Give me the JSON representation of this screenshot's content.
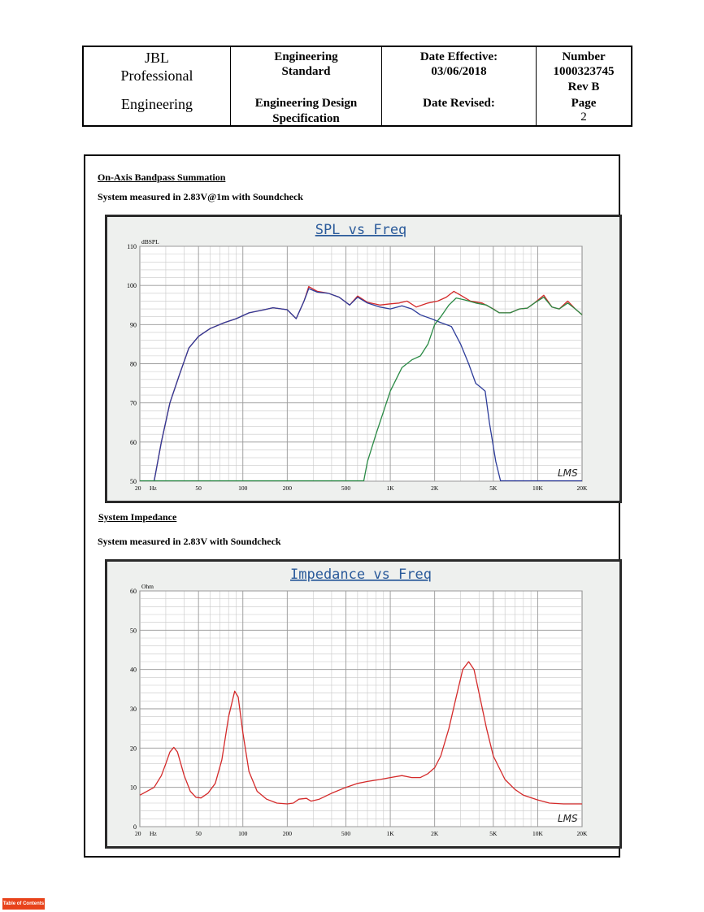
{
  "header": {
    "company_line1": "JBL",
    "company_line2": "Professional",
    "company_line3": "Engineering",
    "std_line1": "Engineering",
    "std_line2": "Standard",
    "spec_line1": "Engineering Design",
    "spec_line2": "Specification",
    "date_eff_label": "Date Effective:",
    "date_eff_value": "03/06/2018",
    "date_rev_label": "Date Revised:",
    "number_label": "Number",
    "number_value": "1000323745",
    "rev": "Rev B",
    "page_label": "Page",
    "page_value": "2"
  },
  "section1": {
    "heading": "On-Axis Bandpass Summation",
    "subheading": "System measured in 2.83V@1m with Soundcheck"
  },
  "section2": {
    "heading": "System Impedance",
    "subheading": "System measured in 2.83V with Soundcheck"
  },
  "footer": {
    "toc_label": "Table of Contents"
  },
  "chart_data": [
    {
      "type": "line",
      "title": "SPL vs Freq",
      "ylabel": "dBSPL",
      "xlabel": "Hz",
      "x_scale": "log",
      "xlim": [
        20,
        20000
      ],
      "ylim": [
        50,
        110
      ],
      "x_ticks": [
        20,
        50,
        100,
        200,
        500,
        1000,
        2000,
        5000,
        10000,
        20000
      ],
      "x_tick_labels": [
        "20",
        "50",
        "100",
        "200",
        "500",
        "1K",
        "2K",
        "5K",
        "10K",
        "20K"
      ],
      "y_ticks": [
        50,
        60,
        70,
        80,
        90,
        100,
        110
      ],
      "watermark": "LMS",
      "series": [
        {
          "color": "#d42a2a",
          "points": [
            [
              25,
              50
            ],
            [
              28,
              60
            ],
            [
              32,
              70
            ],
            [
              37,
              77
            ],
            [
              43,
              84
            ],
            [
              50,
              87
            ],
            [
              60,
              89
            ],
            [
              75,
              90.5
            ],
            [
              90,
              91.5
            ],
            [
              110,
              93
            ],
            [
              140,
              93.8
            ],
            [
              160,
              94.3
            ],
            [
              200,
              93.8
            ],
            [
              230,
              91.5
            ],
            [
              260,
              96
            ],
            [
              280,
              99.7
            ],
            [
              320,
              98.5
            ],
            [
              380,
              98
            ],
            [
              450,
              97
            ],
            [
              530,
              95
            ],
            [
              600,
              97.3
            ],
            [
              700,
              95.7
            ],
            [
              850,
              95
            ],
            [
              1000,
              95.3
            ],
            [
              1150,
              95.5
            ],
            [
              1300,
              96
            ],
            [
              1500,
              94.5
            ],
            [
              1800,
              95.5
            ],
            [
              2100,
              96
            ],
            [
              2400,
              97
            ],
            [
              2700,
              98.5
            ],
            [
              3000,
              97.5
            ],
            [
              3500,
              96
            ],
            [
              4200,
              95.5
            ],
            [
              5000,
              94
            ],
            [
              5500,
              93
            ],
            [
              6500,
              93
            ],
            [
              7500,
              94
            ],
            [
              8500,
              94.2
            ],
            [
              9500,
              95.5
            ],
            [
              11000,
              97.5
            ],
            [
              12500,
              94.5
            ],
            [
              14000,
              94
            ],
            [
              16000,
              96
            ],
            [
              18000,
              94
            ],
            [
              20000,
              92.5
            ]
          ]
        },
        {
          "color": "#2d3c9a",
          "points": [
            [
              25,
              50
            ],
            [
              28,
              60
            ],
            [
              32,
              70
            ],
            [
              37,
              77
            ],
            [
              43,
              84
            ],
            [
              50,
              87
            ],
            [
              60,
              89
            ],
            [
              75,
              90.5
            ],
            [
              90,
              91.5
            ],
            [
              110,
              93
            ],
            [
              140,
              93.8
            ],
            [
              160,
              94.3
            ],
            [
              200,
              93.8
            ],
            [
              230,
              91.5
            ],
            [
              260,
              96
            ],
            [
              280,
              99.2
            ],
            [
              320,
              98.3
            ],
            [
              380,
              98
            ],
            [
              450,
              97
            ],
            [
              530,
              95
            ],
            [
              600,
              97
            ],
            [
              700,
              95.5
            ],
            [
              850,
              94.5
            ],
            [
              1000,
              94
            ],
            [
              1200,
              94.8
            ],
            [
              1400,
              94
            ],
            [
              1600,
              92.5
            ],
            [
              1900,
              91.5
            ],
            [
              2200,
              90.5
            ],
            [
              2600,
              89.5
            ],
            [
              3000,
              85
            ],
            [
              3400,
              80
            ],
            [
              3800,
              75
            ],
            [
              4100,
              74
            ],
            [
              4400,
              73
            ],
            [
              4700,
              65
            ],
            [
              5200,
              55
            ],
            [
              5600,
              50
            ]
          ]
        },
        {
          "color": "#2a8a45",
          "points": [
            [
              660,
              50
            ],
            [
              700,
              55
            ],
            [
              800,
              62
            ],
            [
              1000,
              73
            ],
            [
              1200,
              79
            ],
            [
              1400,
              81
            ],
            [
              1600,
              82
            ],
            [
              1800,
              85
            ],
            [
              2000,
              90
            ],
            [
              2200,
              92
            ],
            [
              2500,
              95
            ],
            [
              2800,
              96.8
            ],
            [
              3200,
              96.3
            ],
            [
              3800,
              95.5
            ],
            [
              4500,
              95
            ],
            [
              5500,
              93
            ],
            [
              6500,
              93
            ],
            [
              7500,
              94
            ],
            [
              8500,
              94.2
            ],
            [
              9500,
              95.5
            ],
            [
              11000,
              97
            ],
            [
              12500,
              94.5
            ],
            [
              14000,
              94
            ],
            [
              16000,
              95.5
            ],
            [
              18000,
              94
            ],
            [
              20000,
              92.5
            ]
          ]
        }
      ]
    },
    {
      "type": "line",
      "title": "Impedance vs Freq",
      "ylabel": "Ohm",
      "xlabel": "Hz",
      "x_scale": "log",
      "xlim": [
        20,
        20000
      ],
      "ylim": [
        0,
        60
      ],
      "x_ticks": [
        20,
        50,
        100,
        200,
        500,
        1000,
        2000,
        5000,
        10000,
        20000
      ],
      "x_tick_labels": [
        "20",
        "50",
        "100",
        "200",
        "500",
        "1K",
        "2K",
        "5K",
        "10K",
        "20K"
      ],
      "y_ticks": [
        0,
        10,
        20,
        30,
        40,
        50,
        60
      ],
      "watermark": "LMS",
      "series": [
        {
          "color": "#d42a2a",
          "points": [
            [
              20,
              8
            ],
            [
              25,
              10
            ],
            [
              28,
              13
            ],
            [
              30,
              16
            ],
            [
              32,
              19
            ],
            [
              34,
              20.2
            ],
            [
              36,
              19
            ],
            [
              40,
              13
            ],
            [
              44,
              9
            ],
            [
              48,
              7.5
            ],
            [
              52,
              7.3
            ],
            [
              58,
              8.5
            ],
            [
              65,
              11
            ],
            [
              72,
              17
            ],
            [
              80,
              28
            ],
            [
              88,
              34.5
            ],
            [
              93,
              33
            ],
            [
              100,
              24
            ],
            [
              110,
              14
            ],
            [
              125,
              9
            ],
            [
              145,
              7
            ],
            [
              170,
              6
            ],
            [
              200,
              5.8
            ],
            [
              220,
              6
            ],
            [
              240,
              7
            ],
            [
              270,
              7.2
            ],
            [
              290,
              6.5
            ],
            [
              330,
              7
            ],
            [
              400,
              8.5
            ],
            [
              500,
              10
            ],
            [
              600,
              11
            ],
            [
              700,
              11.5
            ],
            [
              850,
              12
            ],
            [
              1000,
              12.5
            ],
            [
              1200,
              13
            ],
            [
              1400,
              12.5
            ],
            [
              1600,
              12.5
            ],
            [
              1800,
              13.5
            ],
            [
              2000,
              15
            ],
            [
              2200,
              18
            ],
            [
              2500,
              25
            ],
            [
              2800,
              33
            ],
            [
              3100,
              40
            ],
            [
              3400,
              42
            ],
            [
              3700,
              40
            ],
            [
              4000,
              34
            ],
            [
              4500,
              25
            ],
            [
              5000,
              18
            ],
            [
              6000,
              12
            ],
            [
              7000,
              9.5
            ],
            [
              8000,
              8
            ],
            [
              10000,
              6.8
            ],
            [
              12000,
              6
            ],
            [
              15000,
              5.8
            ],
            [
              20000,
              5.8
            ]
          ]
        }
      ]
    }
  ]
}
